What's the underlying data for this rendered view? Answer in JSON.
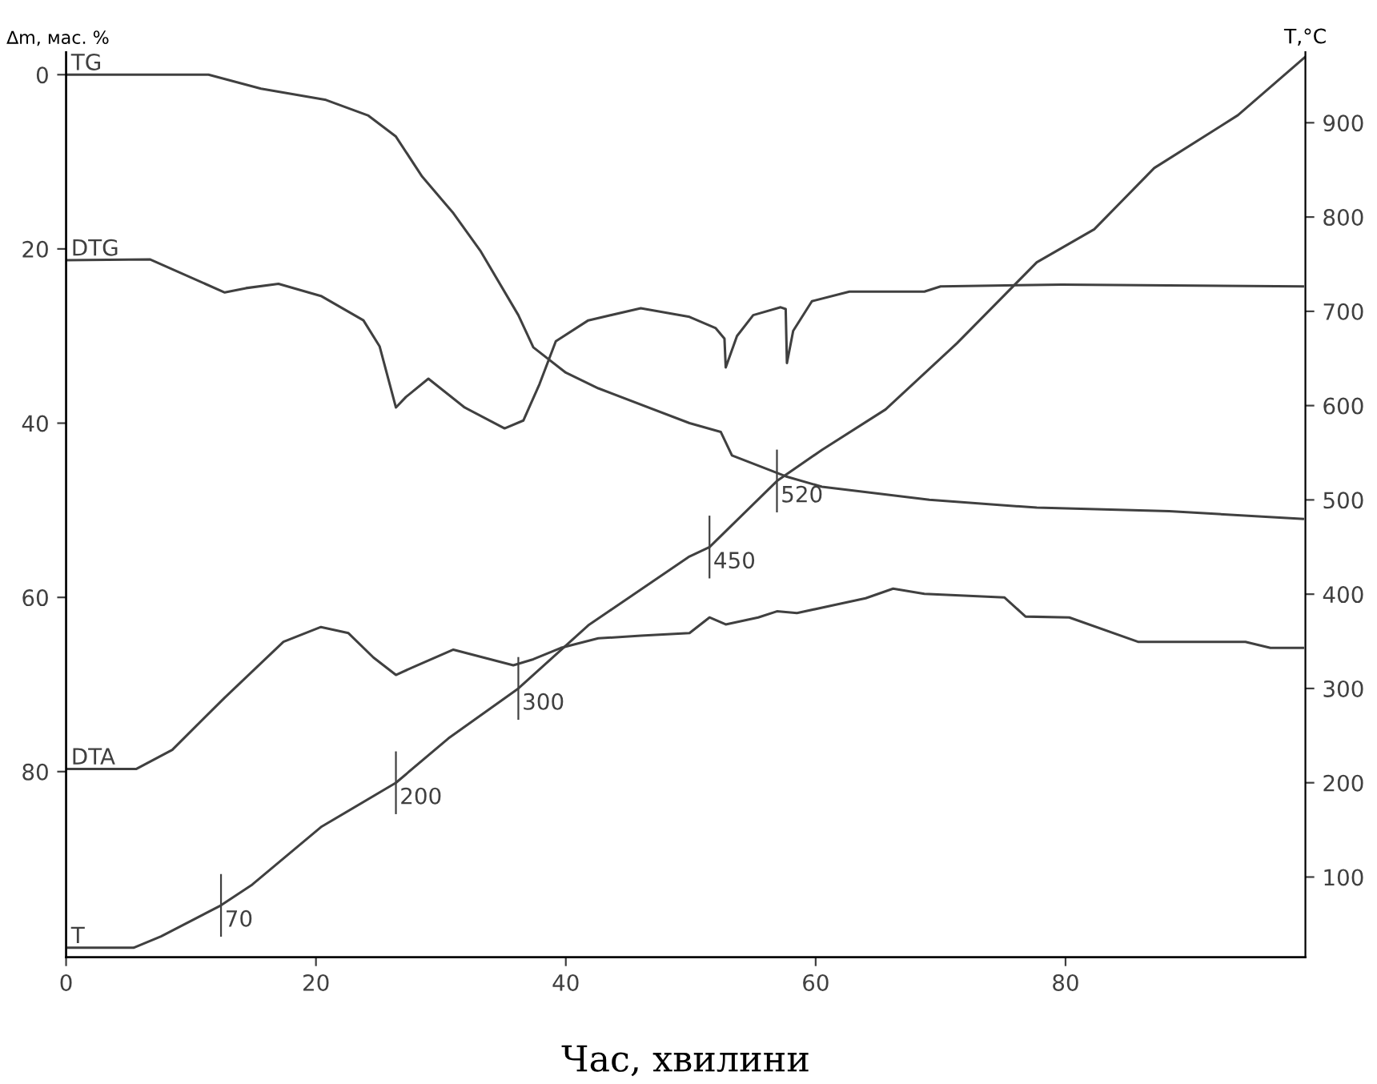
{
  "chart_data": {
    "type": "line",
    "xlabel": "Час, хвилини",
    "ylabel": "∆m, мас. %",
    "y2label": "T,°C",
    "xlim": [
      0,
      99.2
    ],
    "xticks": [
      0,
      20,
      40,
      60,
      80
    ],
    "ylim": [
      101.3,
      -2.6
    ],
    "yticks": [
      0,
      20,
      40,
      60,
      80
    ],
    "y2lim": [
      15,
      975
    ],
    "y2ticks": [
      100,
      200,
      300,
      400,
      500,
      600,
      700,
      800,
      900
    ],
    "grid": false,
    "legend": false,
    "marker": "none",
    "line_style": "solid",
    "series": [
      {
        "name": "TG",
        "color": "#404040",
        "x": [
          0,
          11.4,
          15.6,
          20.8,
          24.2,
          26.4,
          28.5,
          31.0,
          33.2,
          36.2,
          37.4,
          40.0,
          42.6,
          49.9,
          52.4,
          53.3,
          57.6,
          60.5,
          69.1,
          77.7,
          88.3,
          99.0
        ],
        "values": [
          0,
          0,
          1.6,
          2.9,
          4.7,
          7.1,
          11.7,
          15.9,
          20.3,
          27.6,
          31.3,
          34.2,
          36.0,
          40.0,
          41.0,
          43.7,
          46.1,
          47.3,
          48.8,
          49.7,
          50.1,
          51.0
        ]
      },
      {
        "name": "DTG",
        "color": "#404040",
        "x": [
          0,
          6.7,
          12.7,
          14.4,
          17.0,
          20.4,
          23.8,
          25.1,
          26.4,
          27.2,
          29.0,
          31.9,
          35.1,
          36.6,
          37.9,
          39.2,
          41.8,
          46.0,
          49.9,
          52.0,
          52.7,
          52.8,
          53.7,
          55.0,
          57.2,
          57.6,
          57.7,
          58.2,
          59.7,
          62.7,
          68.7,
          70.0,
          79.7,
          99.0
        ],
        "values": [
          21.3,
          21.2,
          25.0,
          24.5,
          24.0,
          25.4,
          28.2,
          31.2,
          38.2,
          37.0,
          34.9,
          38.2,
          40.6,
          39.7,
          35.5,
          30.6,
          28.2,
          26.8,
          27.8,
          29.1,
          30.3,
          33.6,
          30.0,
          27.6,
          26.7,
          26.9,
          33.1,
          29.4,
          26.0,
          24.9,
          24.9,
          24.3,
          24.1,
          24.3
        ]
      },
      {
        "name": "DTA",
        "color": "#404040",
        "x": [
          0,
          5.6,
          8.5,
          12.7,
          17.4,
          20.4,
          22.6,
          24.6,
          26.4,
          28.1,
          31.0,
          35.8,
          37.4,
          39.6,
          42.6,
          46.0,
          49.9,
          51.5,
          52.8,
          55.4,
          56.9,
          58.5,
          61.4,
          64.0,
          66.2,
          68.7,
          75.1,
          76.8,
          80.3,
          85.8,
          94.4,
          96.4,
          99.0
        ],
        "values": [
          79.7,
          79.7,
          77.5,
          71.5,
          65.1,
          63.4,
          64.1,
          66.9,
          68.9,
          67.8,
          66.0,
          67.8,
          67.1,
          65.8,
          64.7,
          64.4,
          64.1,
          62.3,
          63.1,
          62.3,
          61.6,
          61.8,
          60.9,
          60.1,
          59.0,
          59.6,
          60.0,
          62.2,
          62.3,
          65.1,
          65.1,
          65.8,
          65.8
        ]
      },
      {
        "name": "T",
        "color": "#404040",
        "axis": "y2",
        "x": [
          0,
          5.4,
          7.6,
          12.4,
          14.9,
          20.4,
          26.4,
          30.6,
          36.2,
          41.8,
          49.9,
          51.5,
          56.9,
          60.5,
          65.6,
          71.3,
          77.7,
          82.3,
          87.1,
          93.8,
          99.2
        ],
        "values": [
          25,
          25,
          37,
          70,
          92,
          153,
          200,
          247,
          300,
          367,
          440,
          450,
          520,
          553,
          596,
          666,
          752,
          787,
          852,
          908,
          970
        ]
      }
    ],
    "annotations": [
      {
        "text": "70",
        "x": 12.4,
        "y": 95.35
      },
      {
        "text": "200",
        "x": 26.4,
        "y": 81.28
      },
      {
        "text": "300",
        "x": 36.2,
        "y": 70.45
      },
      {
        "text": "450",
        "x": 51.5,
        "y": 54.22
      },
      {
        "text": "520",
        "x": 56.9,
        "y": 46.64
      }
    ]
  }
}
